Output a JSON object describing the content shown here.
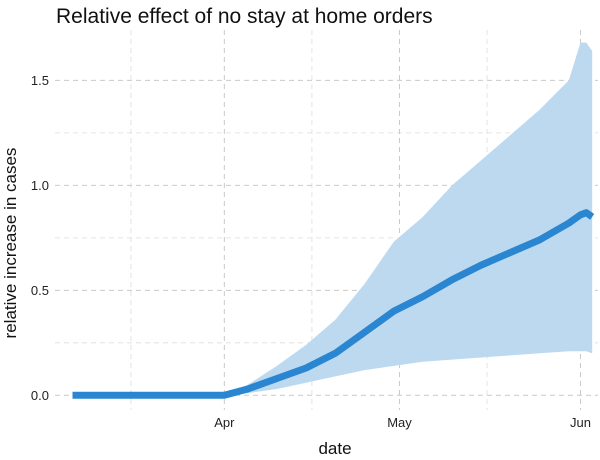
{
  "chart_data": {
    "type": "line",
    "title": "Relative effect of no stay at home orders",
    "xlabel": "date",
    "ylabel": "relative increase in cases",
    "x_axis": {
      "type": "date",
      "range": [
        "2020-03-03",
        "2020-06-04"
      ],
      "ticks": [
        {
          "date": "2020-04-01",
          "label": "Apr"
        },
        {
          "date": "2020-05-01",
          "label": "May"
        },
        {
          "date": "2020-06-01",
          "label": "Jun"
        }
      ],
      "minor_ticks": [
        "2020-03-16",
        "2020-04-16",
        "2020-05-16"
      ]
    },
    "y_axis": {
      "range": [
        -0.07,
        1.74
      ],
      "ticks": [
        {
          "value": 0.0,
          "label": "0.0"
        },
        {
          "value": 0.5,
          "label": "0.5"
        },
        {
          "value": 1.0,
          "label": "1.0"
        },
        {
          "value": 1.5,
          "label": "1.5"
        }
      ],
      "minor_ticks": [
        0.25,
        0.75,
        1.25
      ]
    },
    "grid": true,
    "legend": "none",
    "series": [
      {
        "color": "#2a86d0",
        "band_color": "#bcd9f0",
        "points": [
          {
            "date": "2020-03-06",
            "y": 0.0,
            "lower": 0.0,
            "upper": 0.0
          },
          {
            "date": "2020-03-15",
            "y": 0.0,
            "lower": 0.0,
            "upper": 0.0
          },
          {
            "date": "2020-03-25",
            "y": 0.0,
            "lower": 0.0,
            "upper": 0.0
          },
          {
            "date": "2020-04-01",
            "y": 0.0,
            "lower": 0.0,
            "upper": 0.0
          },
          {
            "date": "2020-04-05",
            "y": 0.03,
            "lower": 0.01,
            "upper": 0.05
          },
          {
            "date": "2020-04-10",
            "y": 0.08,
            "lower": 0.03,
            "upper": 0.14
          },
          {
            "date": "2020-04-15",
            "y": 0.13,
            "lower": 0.06,
            "upper": 0.24
          },
          {
            "date": "2020-04-20",
            "y": 0.2,
            "lower": 0.09,
            "upper": 0.36
          },
          {
            "date": "2020-04-25",
            "y": 0.3,
            "lower": 0.12,
            "upper": 0.53
          },
          {
            "date": "2020-04-30",
            "y": 0.4,
            "lower": 0.14,
            "upper": 0.73
          },
          {
            "date": "2020-05-05",
            "y": 0.47,
            "lower": 0.16,
            "upper": 0.85
          },
          {
            "date": "2020-05-10",
            "y": 0.55,
            "lower": 0.17,
            "upper": 1.0
          },
          {
            "date": "2020-05-15",
            "y": 0.62,
            "lower": 0.18,
            "upper": 1.12
          },
          {
            "date": "2020-05-20",
            "y": 0.68,
            "lower": 0.19,
            "upper": 1.24
          },
          {
            "date": "2020-05-25",
            "y": 0.74,
            "lower": 0.2,
            "upper": 1.36
          },
          {
            "date": "2020-05-30",
            "y": 0.82,
            "lower": 0.21,
            "upper": 1.5
          },
          {
            "date": "2020-06-01",
            "y": 0.86,
            "lower": 0.21,
            "upper": 1.68
          },
          {
            "date": "2020-06-02",
            "y": 0.87,
            "lower": 0.21,
            "upper": 1.68
          },
          {
            "date": "2020-06-03",
            "y": 0.85,
            "lower": 0.2,
            "upper": 1.64
          }
        ]
      }
    ]
  }
}
